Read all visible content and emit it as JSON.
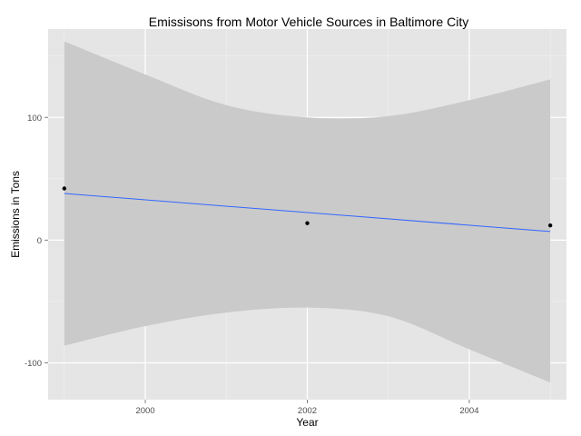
{
  "chart_data": {
    "type": "scatter",
    "title": "Emissisons from Motor Vehicle Sources in Baltimore City",
    "xlabel": "Year",
    "ylabel": "Emissions in Tons",
    "xlim": [
      1998.8,
      2005.2
    ],
    "ylim": [
      -130,
      172
    ],
    "x_ticks": [
      2000,
      2002,
      2004
    ],
    "x_minor_ticks": [
      1999,
      2001,
      2003,
      2005
    ],
    "y_ticks": [
      -100,
      0,
      100
    ],
    "y_minor_ticks": [
      -50,
      50,
      150
    ],
    "grid": true,
    "legend": "none",
    "colors": {
      "panel_background": "#e5e5e5",
      "grid": "#ffffff",
      "points": "#000000",
      "fit_line": "#3366ff",
      "confidence_band": "#c8c8c8"
    },
    "series": [
      {
        "type": "scatter",
        "x": [
          1999,
          2002,
          2005
        ],
        "y": [
          42.1,
          13.8,
          12.0
        ]
      }
    ],
    "fit": {
      "method": "linear",
      "line": {
        "x": [
          1999,
          2005
        ],
        "y": [
          38.0,
          7.0
        ]
      },
      "band": {
        "x": [
          1999,
          2000,
          2001,
          2002,
          2003,
          2004,
          2005
        ],
        "upper": [
          162,
          135,
          110,
          100,
          101,
          114,
          131
        ],
        "lower": [
          -86,
          -70,
          -59,
          -55,
          -62,
          -89,
          -116
        ]
      }
    }
  }
}
